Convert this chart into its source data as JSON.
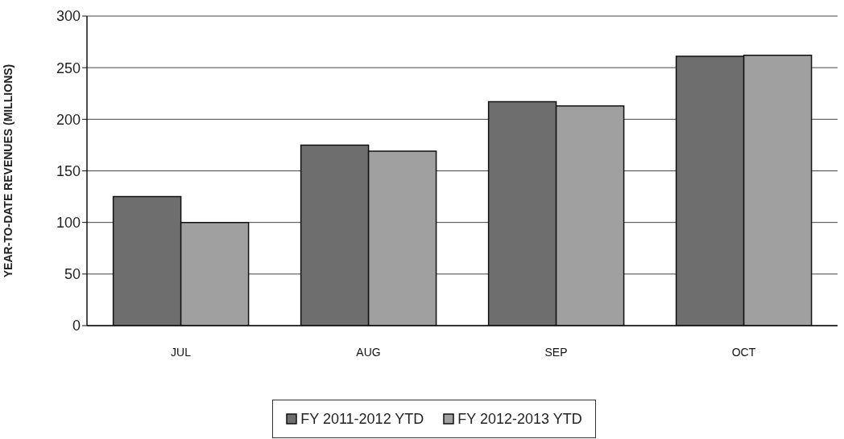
{
  "chart_data": {
    "type": "bar",
    "ylabel": "YEAR-TO-DATE REVENUES (MILLIONS)",
    "categories": [
      "JUL",
      "AUG",
      "SEP",
      "OCT"
    ],
    "series": [
      {
        "name": "FY 2011-2012 YTD",
        "color": "#6e6e6e",
        "values": [
          125,
          175,
          217,
          261
        ]
      },
      {
        "name": "FY 2012-2013 YTD",
        "color": "#a0a0a0",
        "values": [
          100,
          169,
          213,
          262
        ]
      }
    ],
    "ylim": [
      0,
      300
    ],
    "yticks": [
      0,
      50,
      100,
      150,
      200,
      250,
      300
    ],
    "grid": "y",
    "legend": "bottom"
  }
}
